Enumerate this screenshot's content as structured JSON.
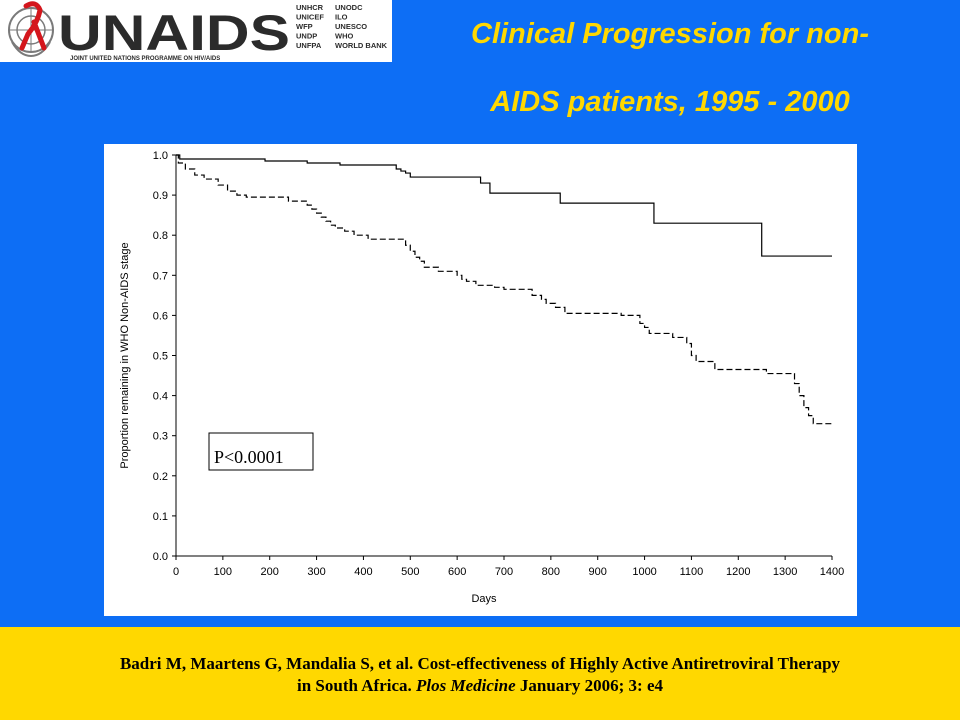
{
  "logo": {
    "wordmark": "UNAIDS",
    "subtitle": "JOINT UNITED NATIONS PROGRAMME ON HIV/AIDS",
    "cosponsors_col1": [
      "UNHCR",
      "UNICEF",
      "WFP",
      "UNDP",
      "UNFPA"
    ],
    "cosponsors_col2": [
      "UNODC",
      "ILO",
      "UNESCO",
      "WHO",
      "WORLD BANK"
    ]
  },
  "title": {
    "line1": "Clinical Progression for non-",
    "line2": "AIDS patients, 1995 - 2000"
  },
  "colors": {
    "background": "#0d6ef5",
    "accent": "#ffd800",
    "chart_bg": "#ffffff"
  },
  "chart_data": {
    "type": "line",
    "xlabel": "Days",
    "ylabel": "Proportion remaining in WHO Non-AIDS stage",
    "xlim": [
      0,
      1400
    ],
    "ylim": [
      0,
      1.0
    ],
    "xticks": [
      "0",
      "100",
      "200",
      "300",
      "400",
      "500",
      "600",
      "700",
      "800",
      "900",
      "1000",
      "1100",
      "1200",
      "1300",
      "1400"
    ],
    "yticks": [
      "0.0",
      "0.1",
      "0.2",
      "0.3",
      "0.4",
      "0.5",
      "0.6",
      "0.7",
      "0.8",
      "0.9",
      "1.0"
    ],
    "annotation": "P<0.0001",
    "grid": false,
    "series": [
      {
        "style": "solid",
        "points": [
          [
            0,
            1.0
          ],
          [
            8,
            0.99
          ],
          [
            190,
            0.985
          ],
          [
            280,
            0.98
          ],
          [
            350,
            0.975
          ],
          [
            470,
            0.965
          ],
          [
            480,
            0.96
          ],
          [
            490,
            0.955
          ],
          [
            500,
            0.945
          ],
          [
            650,
            0.93
          ],
          [
            670,
            0.905
          ],
          [
            820,
            0.88
          ],
          [
            1020,
            0.83
          ],
          [
            1250,
            0.748
          ],
          [
            1400,
            0.748
          ]
        ]
      },
      {
        "style": "dashed",
        "points": [
          [
            0,
            1.0
          ],
          [
            5,
            0.98
          ],
          [
            20,
            0.965
          ],
          [
            40,
            0.95
          ],
          [
            60,
            0.94
          ],
          [
            90,
            0.925
          ],
          [
            110,
            0.91
          ],
          [
            130,
            0.9
          ],
          [
            150,
            0.895
          ],
          [
            240,
            0.885
          ],
          [
            280,
            0.875
          ],
          [
            290,
            0.865
          ],
          [
            300,
            0.855
          ],
          [
            310,
            0.845
          ],
          [
            320,
            0.835
          ],
          [
            330,
            0.825
          ],
          [
            340,
            0.818
          ],
          [
            360,
            0.81
          ],
          [
            380,
            0.8
          ],
          [
            410,
            0.79
          ],
          [
            490,
            0.775
          ],
          [
            500,
            0.76
          ],
          [
            510,
            0.745
          ],
          [
            520,
            0.735
          ],
          [
            530,
            0.72
          ],
          [
            560,
            0.71
          ],
          [
            600,
            0.7
          ],
          [
            610,
            0.69
          ],
          [
            620,
            0.685
          ],
          [
            640,
            0.675
          ],
          [
            680,
            0.67
          ],
          [
            700,
            0.665
          ],
          [
            760,
            0.65
          ],
          [
            780,
            0.64
          ],
          [
            790,
            0.63
          ],
          [
            810,
            0.62
          ],
          [
            830,
            0.605
          ],
          [
            950,
            0.6
          ],
          [
            990,
            0.58
          ],
          [
            1000,
            0.57
          ],
          [
            1010,
            0.555
          ],
          [
            1060,
            0.545
          ],
          [
            1090,
            0.53
          ],
          [
            1100,
            0.5
          ],
          [
            1110,
            0.485
          ],
          [
            1150,
            0.465
          ],
          [
            1260,
            0.455
          ],
          [
            1320,
            0.43
          ],
          [
            1330,
            0.4
          ],
          [
            1340,
            0.37
          ],
          [
            1350,
            0.35
          ],
          [
            1360,
            0.33
          ],
          [
            1400,
            0.33
          ]
        ]
      }
    ]
  },
  "citation": {
    "line1": "Badri M, Maartens G, Mandalia S, et al. Cost-effectiveness  of Highly Active Antiretroviral Therapy",
    "line2_pre": "in South Africa. ",
    "line2_journal": "Plos Medicine",
    "line2_post": " January 2006; 3: e4"
  }
}
